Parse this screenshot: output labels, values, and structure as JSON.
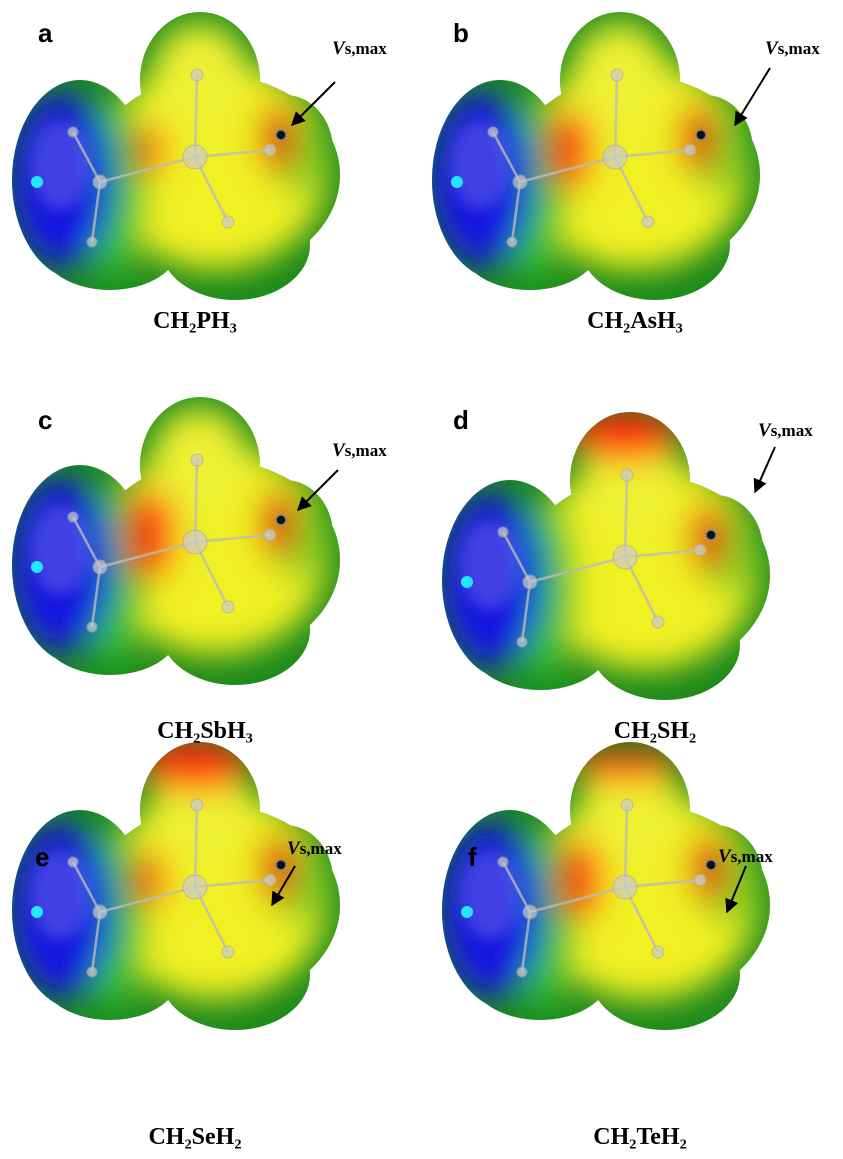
{
  "panels": [
    {
      "letter": "a",
      "label": "Vs,max",
      "formula": "CH₂PH₃"
    },
    {
      "letter": "b",
      "label": "Vs,max",
      "formula": "CH₂AsH₃"
    },
    {
      "letter": "c",
      "label": "Vs,max",
      "formula": "CH₂SbH₃"
    },
    {
      "letter": "d",
      "label": "Vs,max",
      "formula": "CH₂SH₂"
    },
    {
      "letter": "e",
      "label": "Vs,max",
      "formula": "CH₂SeH₂"
    },
    {
      "letter": "f",
      "label": "Vs,max",
      "formula": "CH₂TeH₂"
    }
  ]
}
